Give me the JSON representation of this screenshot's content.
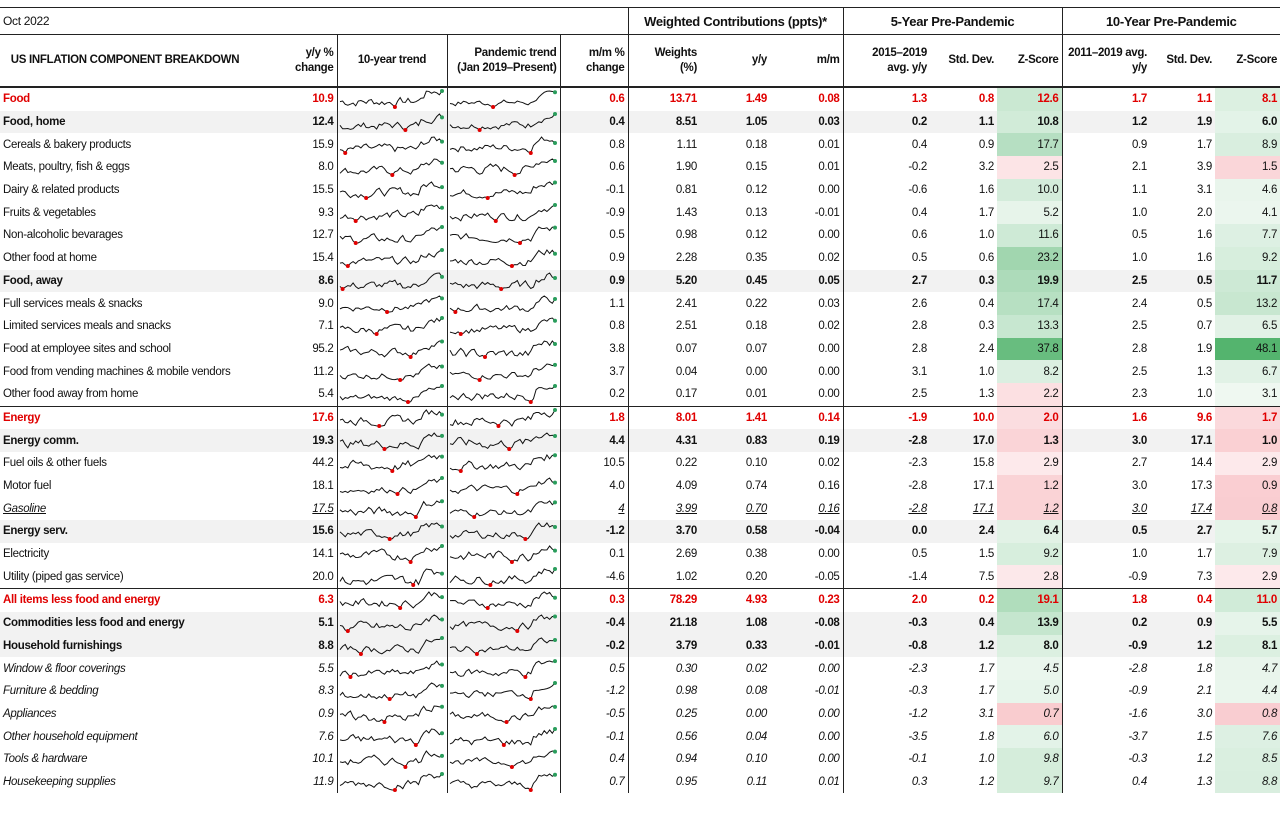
{
  "header": {
    "title": "Oct 2022",
    "groups": [
      "Weighted Contributions (ppts)*",
      "5-Year Pre-Pandemic",
      "10-Year Pre-Pandemic"
    ]
  },
  "columns": [
    "US INFLATION COMPONENT BREAKDOWN",
    "y/y %\nchange",
    "10-year trend",
    "Pandemic trend\n(Jan 2019–Present)",
    "m/m %\nchange",
    "Weights\n(%)",
    "y/y",
    "m/m",
    "2015–2019\navg. y/y",
    "Std. Dev.",
    "Z-Score",
    "2011–2019 avg.\ny/y",
    "Std. Dev.",
    "Z-Score"
  ],
  "rows": [
    {
      "style": "section",
      "cells": [
        "Food",
        "10.9",
        "0.6",
        "13.71",
        "1.49",
        "0.08",
        "1.3",
        "0.8",
        "12.6",
        "1.7",
        "1.1",
        "8.1"
      ]
    },
    {
      "style": "bold",
      "cells": [
        "Food, home",
        "12.4",
        "0.4",
        "8.51",
        "1.05",
        "0.03",
        "0.2",
        "1.1",
        "10.8",
        "1.2",
        "1.9",
        "6.0"
      ]
    },
    {
      "style": "normal",
      "cells": [
        "Cereals & bakery products",
        "15.9",
        "0.8",
        "1.11",
        "0.18",
        "0.01",
        "0.4",
        "0.9",
        "17.7",
        "0.9",
        "1.7",
        "8.9"
      ]
    },
    {
      "style": "normal",
      "cells": [
        "Meats, poultry, fish & eggs",
        "8.0",
        "0.6",
        "1.90",
        "0.15",
        "0.01",
        "-0.2",
        "3.2",
        "2.5",
        "2.1",
        "3.9",
        "1.5"
      ]
    },
    {
      "style": "normal",
      "cells": [
        "Dairy & related products",
        "15.5",
        "-0.1",
        "0.81",
        "0.12",
        "0.00",
        "-0.6",
        "1.6",
        "10.0",
        "1.1",
        "3.1",
        "4.6"
      ]
    },
    {
      "style": "normal",
      "cells": [
        "Fruits & vegetables",
        "9.3",
        "-0.9",
        "1.43",
        "0.13",
        "-0.01",
        "0.4",
        "1.7",
        "5.2",
        "1.0",
        "2.0",
        "4.1"
      ]
    },
    {
      "style": "normal",
      "cells": [
        "Non-alcoholic bevarages",
        "12.7",
        "0.5",
        "0.98",
        "0.12",
        "0.00",
        "0.6",
        "1.0",
        "11.6",
        "0.5",
        "1.6",
        "7.7"
      ]
    },
    {
      "style": "normal",
      "cells": [
        "Other food at home",
        "15.4",
        "0.9",
        "2.28",
        "0.35",
        "0.02",
        "0.5",
        "0.6",
        "23.2",
        "1.0",
        "1.6",
        "9.2"
      ]
    },
    {
      "style": "bold",
      "cells": [
        "Food, away",
        "8.6",
        "0.9",
        "5.20",
        "0.45",
        "0.05",
        "2.7",
        "0.3",
        "19.9",
        "2.5",
        "0.5",
        "11.7"
      ]
    },
    {
      "style": "normal",
      "cells": [
        "Full services meals & snacks",
        "9.0",
        "1.1",
        "2.41",
        "0.22",
        "0.03",
        "2.6",
        "0.4",
        "17.4",
        "2.4",
        "0.5",
        "13.2"
      ]
    },
    {
      "style": "normal",
      "cells": [
        "Limited services meals and snacks",
        "7.1",
        "0.8",
        "2.51",
        "0.18",
        "0.02",
        "2.8",
        "0.3",
        "13.3",
        "2.5",
        "0.7",
        "6.5"
      ]
    },
    {
      "style": "normal",
      "cells": [
        "Food at employee sites and school",
        "95.2",
        "3.8",
        "0.07",
        "0.07",
        "0.00",
        "2.8",
        "2.4",
        "37.8",
        "2.8",
        "1.9",
        "48.1"
      ]
    },
    {
      "style": "normal",
      "cells": [
        "Food from vending machines & mobile vendors",
        "11.2",
        "3.7",
        "0.04",
        "0.00",
        "0.00",
        "3.1",
        "1.0",
        "8.2",
        "2.5",
        "1.3",
        "6.7"
      ]
    },
    {
      "style": "normal",
      "cells": [
        "Other food away from home",
        "5.4",
        "0.2",
        "0.17",
        "0.01",
        "0.00",
        "2.5",
        "1.3",
        "2.2",
        "2.3",
        "1.0",
        "3.1"
      ]
    },
    {
      "style": "section",
      "cells": [
        "Energy",
        "17.6",
        "1.8",
        "8.01",
        "1.41",
        "0.14",
        "-1.9",
        "10.0",
        "2.0",
        "1.6",
        "9.6",
        "1.7"
      ]
    },
    {
      "style": "bold",
      "cells": [
        "Energy comm.",
        "19.3",
        "4.4",
        "4.31",
        "0.83",
        "0.19",
        "-2.8",
        "17.0",
        "1.3",
        "3.0",
        "17.1",
        "1.0"
      ]
    },
    {
      "style": "normal",
      "cells": [
        "Fuel oils & other fuels",
        "44.2",
        "10.5",
        "0.22",
        "0.10",
        "0.02",
        "-2.3",
        "15.8",
        "2.9",
        "2.7",
        "14.4",
        "2.9"
      ]
    },
    {
      "style": "normal",
      "cells": [
        "Motor fuel",
        "18.1",
        "4.0",
        "4.09",
        "0.74",
        "0.16",
        "-2.8",
        "17.1",
        "1.2",
        "3.0",
        "17.3",
        "0.9"
      ]
    },
    {
      "style": "italic-underline",
      "cells": [
        "Gasoline",
        "17.5",
        "4",
        "3.99",
        "0.70",
        "0.16",
        "-2.8",
        "17.1",
        "1.2",
        "3.0",
        "17.4",
        "0.8"
      ]
    },
    {
      "style": "bold",
      "cells": [
        "Energy serv.",
        "15.6",
        "-1.2",
        "3.70",
        "0.58",
        "-0.04",
        "0.0",
        "2.4",
        "6.4",
        "0.5",
        "2.7",
        "5.7"
      ]
    },
    {
      "style": "normal",
      "cells": [
        "Electricity",
        "14.1",
        "0.1",
        "2.69",
        "0.38",
        "0.00",
        "0.5",
        "1.5",
        "9.2",
        "1.0",
        "1.7",
        "7.9"
      ]
    },
    {
      "style": "normal",
      "cells": [
        "Utility (piped gas service)",
        "20.0",
        "-4.6",
        "1.02",
        "0.20",
        "-0.05",
        "-1.4",
        "7.5",
        "2.8",
        "-0.9",
        "7.3",
        "2.9"
      ]
    },
    {
      "style": "section",
      "cells": [
        "All items less food and energy",
        "6.3",
        "0.3",
        "78.29",
        "4.93",
        "0.23",
        "2.0",
        "0.2",
        "19.1",
        "1.8",
        "0.4",
        "11.0"
      ]
    },
    {
      "style": "bold",
      "cells": [
        "Commodities less food and energy",
        "5.1",
        "-0.4",
        "21.18",
        "1.08",
        "-0.08",
        "-0.3",
        "0.4",
        "13.9",
        "0.2",
        "0.9",
        "5.5"
      ]
    },
    {
      "style": "bold",
      "cells": [
        "Household furnishings",
        "8.8",
        "-0.2",
        "3.79",
        "0.33",
        "-0.01",
        "-0.8",
        "1.2",
        "8.0",
        "-0.9",
        "1.2",
        "8.1"
      ]
    },
    {
      "style": "italic",
      "cells": [
        "Window & floor coverings",
        "5.5",
        "0.5",
        "0.30",
        "0.02",
        "0.00",
        "-2.3",
        "1.7",
        "4.5",
        "-2.8",
        "1.8",
        "4.7"
      ]
    },
    {
      "style": "italic",
      "cells": [
        "Furniture & bedding",
        "8.3",
        "-1.2",
        "0.98",
        "0.08",
        "-0.01",
        "-0.3",
        "1.7",
        "5.0",
        "-0.9",
        "2.1",
        "4.4"
      ]
    },
    {
      "style": "italic",
      "cells": [
        "Appliances",
        "0.9",
        "-0.5",
        "0.25",
        "0.00",
        "0.00",
        "-1.2",
        "3.1",
        "0.7",
        "-1.6",
        "3.0",
        "0.8"
      ]
    },
    {
      "style": "italic",
      "cells": [
        "Other household equipment",
        "7.6",
        "-0.1",
        "0.56",
        "0.04",
        "0.00",
        "-3.5",
        "1.8",
        "6.0",
        "-3.7",
        "1.5",
        "7.6"
      ]
    },
    {
      "style": "italic",
      "cells": [
        "Tools & hardware",
        "10.1",
        "0.4",
        "0.94",
        "0.10",
        "0.00",
        "-0.1",
        "1.0",
        "9.8",
        "-0.3",
        "1.2",
        "8.5"
      ]
    },
    {
      "style": "italic",
      "cells": [
        "Housekeeping supplies",
        "11.9",
        "0.7",
        "0.95",
        "0.11",
        "0.01",
        "0.3",
        "1.2",
        "9.7",
        "0.4",
        "1.3",
        "8.8"
      ]
    }
  ]
}
